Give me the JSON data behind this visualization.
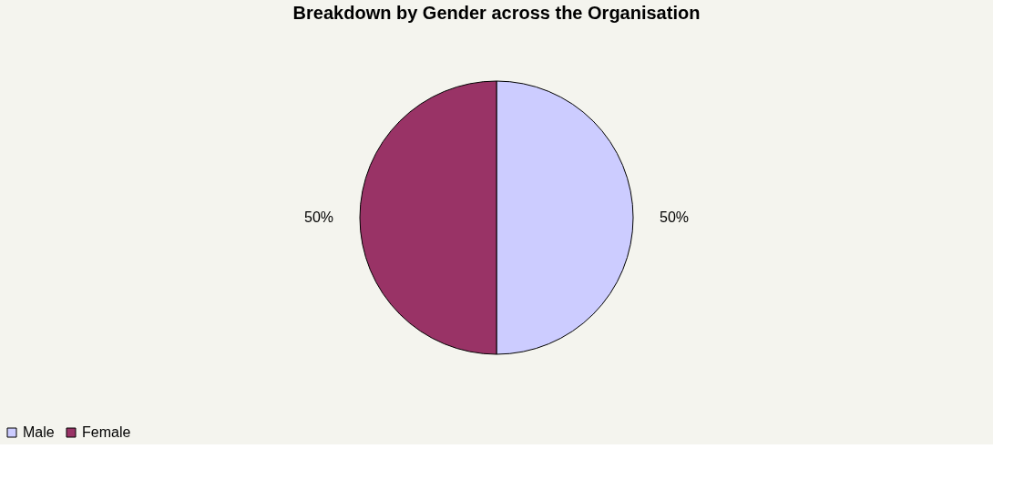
{
  "chart_data": {
    "type": "pie",
    "title": "Breakdown by Gender across the Organisation",
    "categories": [
      "Male",
      "Female"
    ],
    "values": [
      50,
      50
    ],
    "colors": [
      "#ccccff",
      "#993366"
    ],
    "value_labels": [
      "50%",
      "50%"
    ],
    "legend": "bottom"
  }
}
